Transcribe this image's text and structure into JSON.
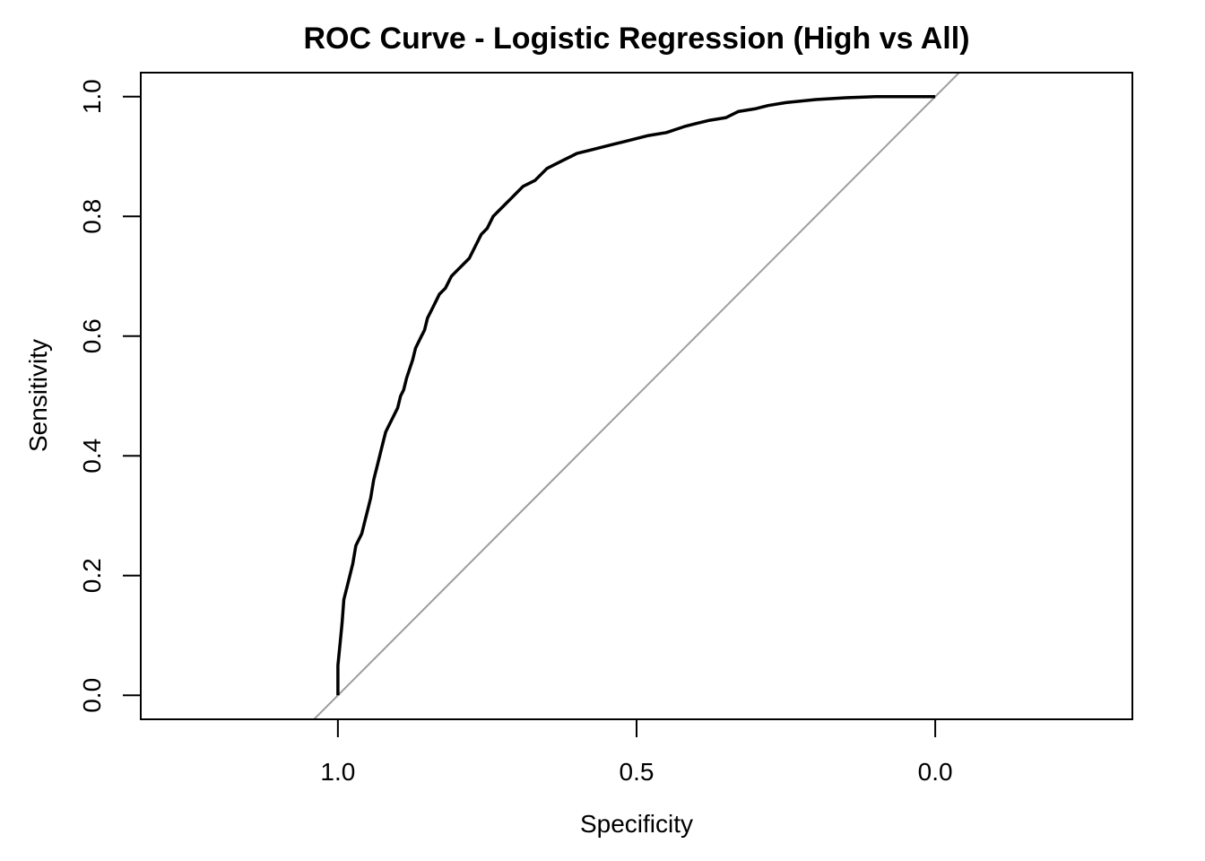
{
  "chart_data": {
    "type": "line",
    "title": "ROC Curve - Logistic Regression (High vs All)",
    "xlabel": "Specificity",
    "ylabel": "Sensitivity",
    "x_reversed": true,
    "xlim": [
      1.33,
      -0.33
    ],
    "ylim": [
      -0.04,
      1.04
    ],
    "x_ticks": [
      1.0,
      0.5,
      0.0
    ],
    "x_tick_labels": [
      "1.0",
      "0.5",
      "0.0"
    ],
    "y_ticks": [
      0.0,
      0.2,
      0.4,
      0.6,
      0.8,
      1.0
    ],
    "y_tick_labels": [
      "0.0",
      "0.2",
      "0.4",
      "0.6",
      "0.8",
      "1.0"
    ],
    "grid": false,
    "reference_line": {
      "type": "diagonal",
      "color": "#9e9e9e"
    },
    "series": [
      {
        "color": "#000000",
        "x": [
          1.0,
          1.0,
          0.995,
          0.993,
          0.99,
          0.985,
          0.98,
          0.975,
          0.97,
          0.96,
          0.955,
          0.95,
          0.945,
          0.94,
          0.935,
          0.93,
          0.925,
          0.92,
          0.915,
          0.905,
          0.9,
          0.895,
          0.89,
          0.885,
          0.875,
          0.87,
          0.86,
          0.855,
          0.85,
          0.84,
          0.835,
          0.83,
          0.82,
          0.81,
          0.8,
          0.79,
          0.78,
          0.77,
          0.76,
          0.75,
          0.74,
          0.73,
          0.72,
          0.71,
          0.7,
          0.69,
          0.67,
          0.65,
          0.63,
          0.61,
          0.6,
          0.58,
          0.56,
          0.54,
          0.52,
          0.5,
          0.48,
          0.45,
          0.42,
          0.4,
          0.38,
          0.35,
          0.33,
          0.3,
          0.28,
          0.25,
          0.2,
          0.15,
          0.1,
          0.05,
          0.0
        ],
        "y": [
          0.0,
          0.05,
          0.1,
          0.12,
          0.16,
          0.18,
          0.2,
          0.22,
          0.25,
          0.27,
          0.29,
          0.31,
          0.33,
          0.36,
          0.38,
          0.4,
          0.42,
          0.44,
          0.45,
          0.47,
          0.48,
          0.5,
          0.51,
          0.53,
          0.56,
          0.58,
          0.6,
          0.61,
          0.63,
          0.65,
          0.66,
          0.67,
          0.68,
          0.7,
          0.71,
          0.72,
          0.73,
          0.75,
          0.77,
          0.78,
          0.8,
          0.81,
          0.82,
          0.83,
          0.84,
          0.85,
          0.86,
          0.88,
          0.89,
          0.9,
          0.905,
          0.91,
          0.915,
          0.92,
          0.925,
          0.93,
          0.935,
          0.94,
          0.95,
          0.955,
          0.96,
          0.965,
          0.975,
          0.98,
          0.985,
          0.99,
          0.995,
          0.998,
          1.0,
          1.0,
          1.0
        ]
      }
    ]
  }
}
